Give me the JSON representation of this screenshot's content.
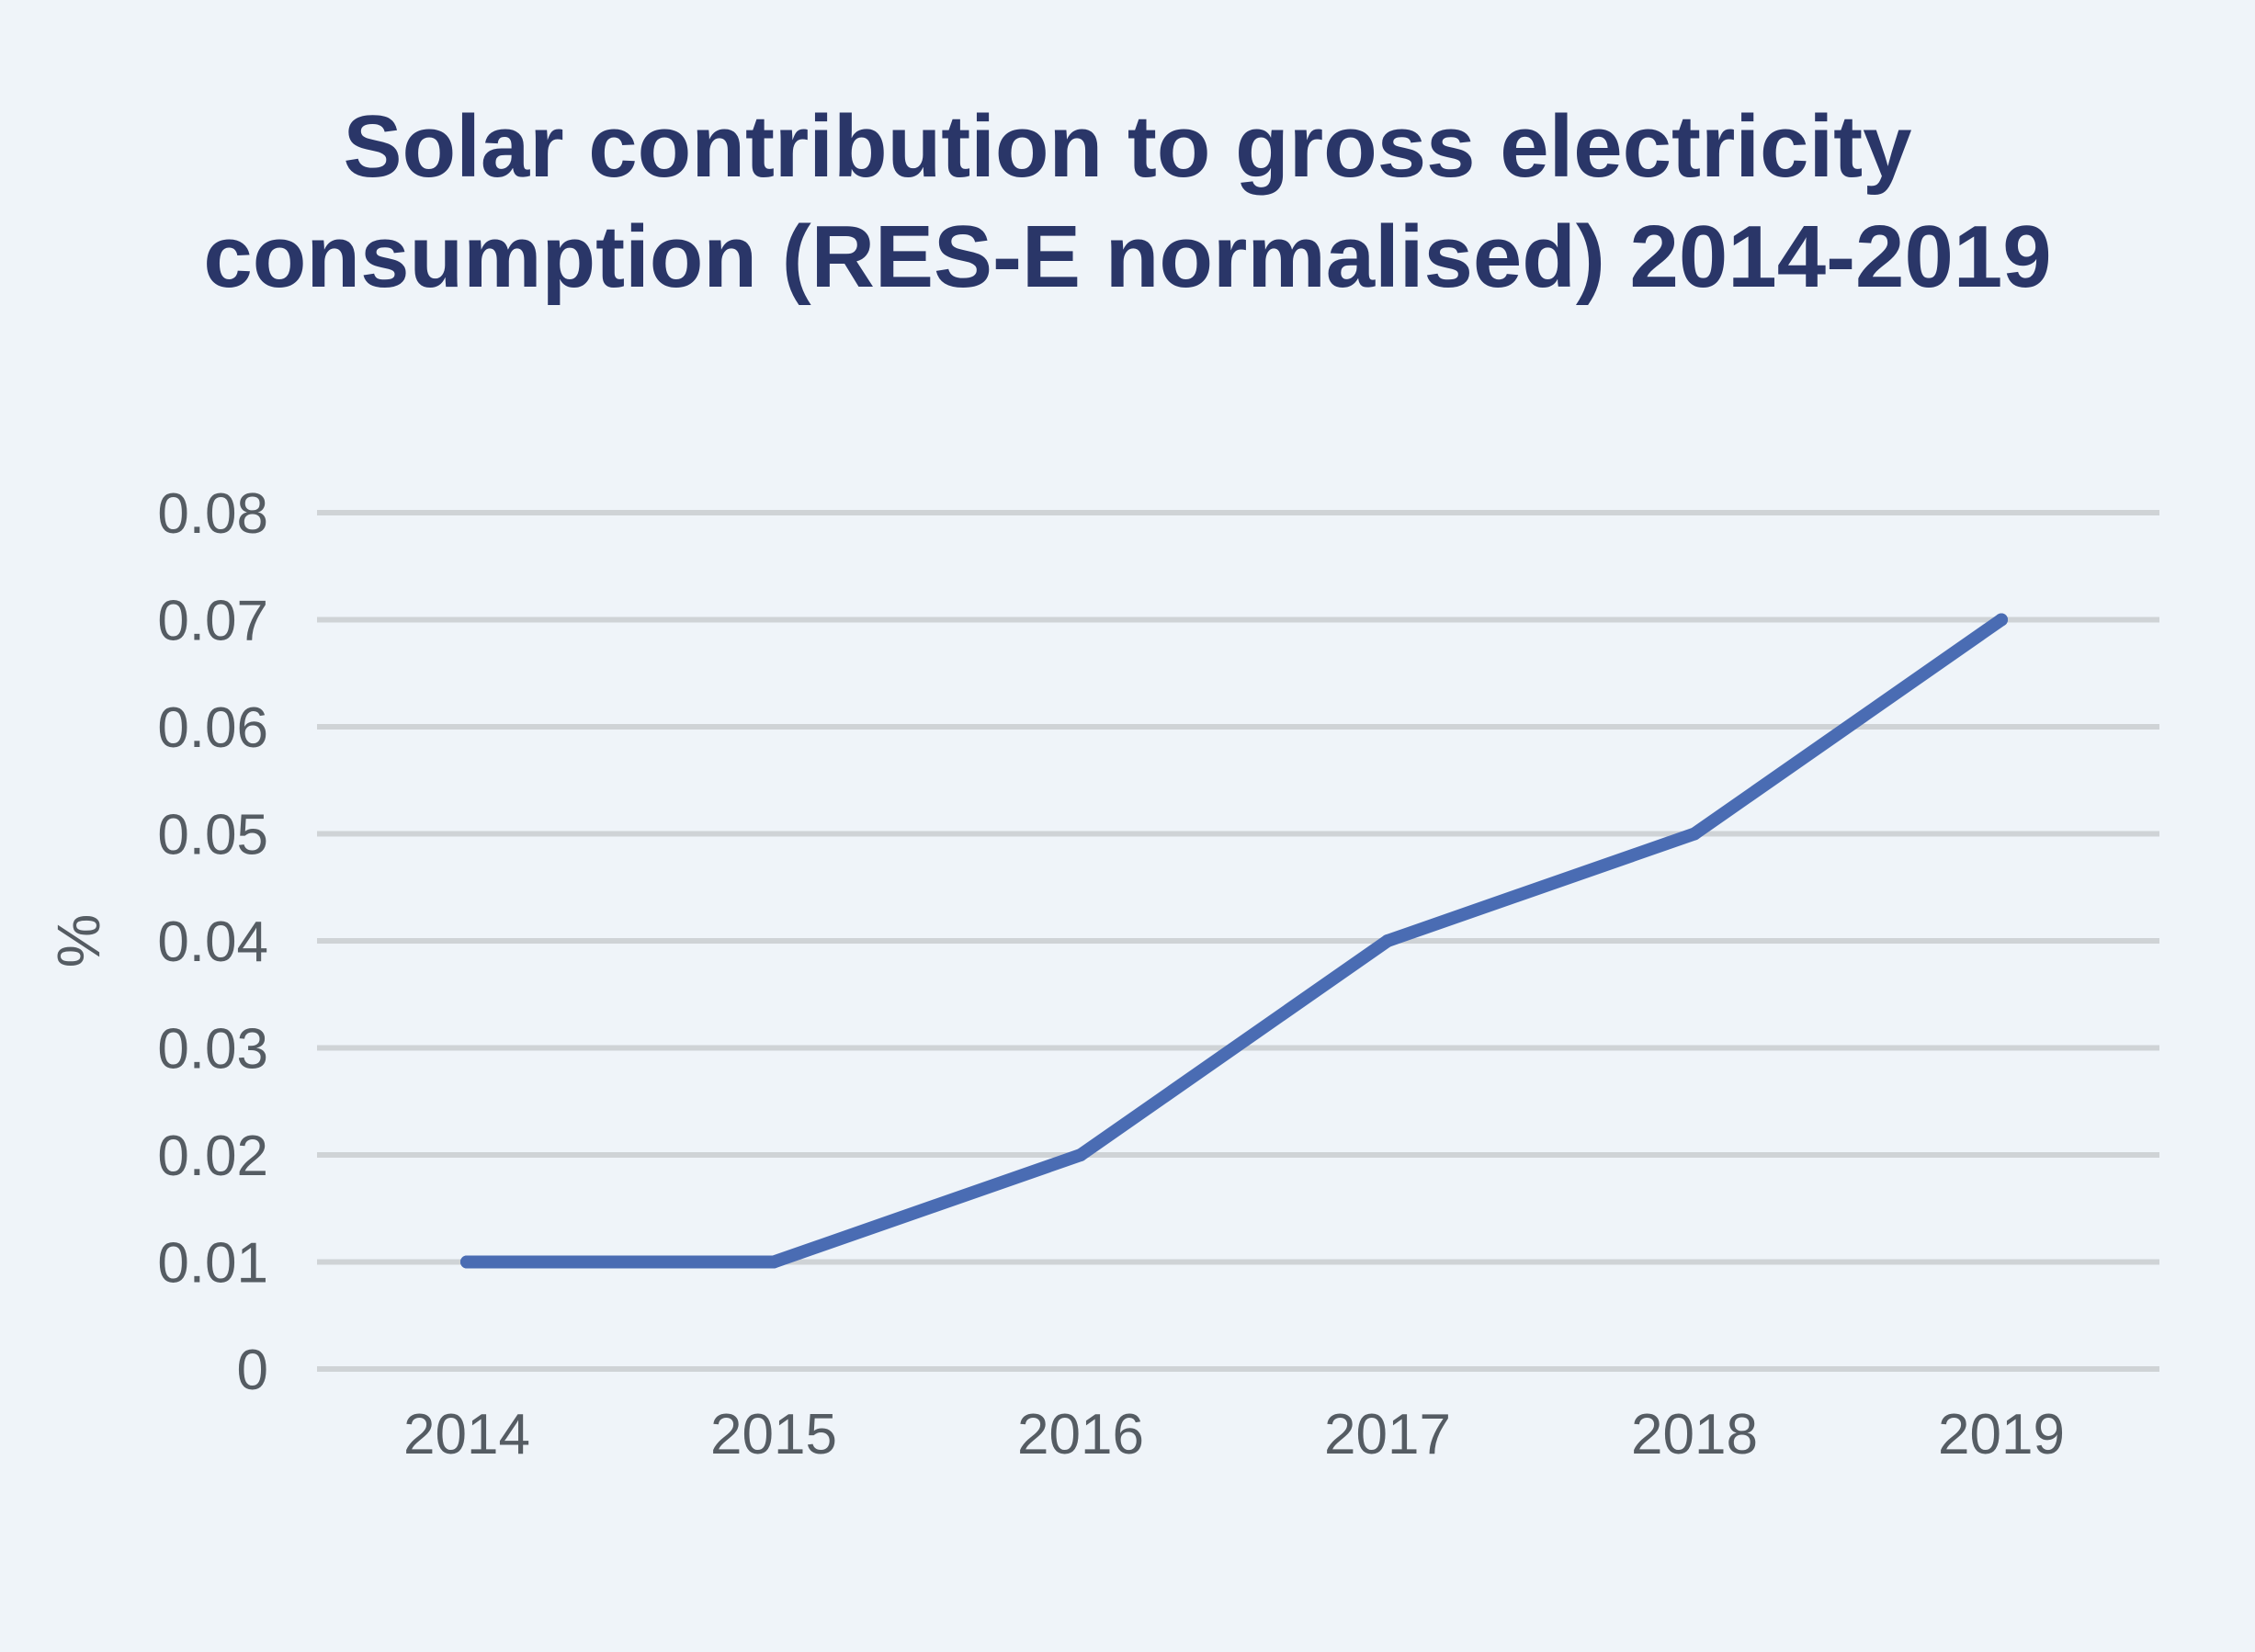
{
  "chart_data": {
    "type": "line",
    "title_lines": [
      "Solar contribution to gross electricity",
      "consumption (RES-E normalised) 2014-2019"
    ],
    "xlabel": "",
    "ylabel": "%",
    "categories": [
      "2014",
      "2015",
      "2016",
      "2017",
      "2018",
      "2019"
    ],
    "series": [
      {
        "values": [
          0.01,
          0.01,
          0.02,
          0.04,
          0.05,
          0.07
        ]
      }
    ],
    "ylim": [
      0,
      0.08
    ],
    "y_ticks": [
      "0",
      "0.01",
      "0.02",
      "0.03",
      "0.04",
      "0.05",
      "0.06",
      "0.07",
      "0.08"
    ],
    "grid": "horizontal",
    "legend": "none",
    "colors": {
      "background": "#eff4f9",
      "title": "#2a3668",
      "line": "#4a6cb3",
      "grid": "#cfd3d6",
      "tick_text": "#555c63"
    }
  }
}
